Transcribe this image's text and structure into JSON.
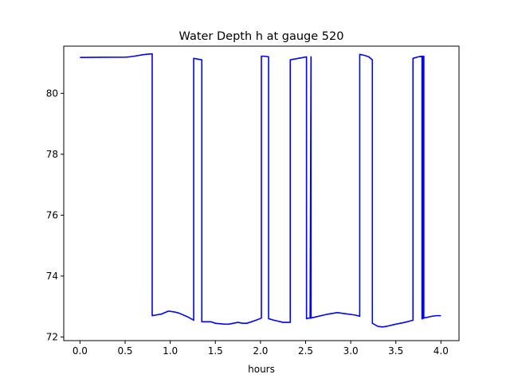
{
  "chart_data": {
    "type": "line",
    "title": "Water Depth h at gauge 520",
    "xlabel": "hours",
    "ylabel": "",
    "xlim": [
      -0.18,
      4.2
    ],
    "ylim": [
      71.88,
      81.55
    ],
    "xticks": [
      0.0,
      0.5,
      1.0,
      1.5,
      2.0,
      2.5,
      3.0,
      3.5,
      4.0
    ],
    "xtick_labels": [
      "0.0",
      "0.5",
      "1.0",
      "1.5",
      "2.0",
      "2.5",
      "3.0",
      "3.5",
      "4.0"
    ],
    "yticks": [
      72,
      74,
      76,
      78,
      80
    ],
    "ytick_labels": [
      "72",
      "74",
      "76",
      "78",
      "80"
    ],
    "grid": false,
    "series": [
      {
        "name": "",
        "color": "#0000ff",
        "x": [
          0.0,
          0.5,
          0.55,
          0.6,
          0.7,
          0.8,
          0.8,
          0.9,
          0.98,
          1.05,
          1.1,
          1.2,
          1.26,
          1.26,
          1.35,
          1.35,
          1.45,
          1.5,
          1.6,
          1.65,
          1.7,
          1.75,
          1.8,
          1.85,
          1.95,
          2.01,
          2.01,
          2.04,
          2.09,
          2.09,
          2.15,
          2.25,
          2.33,
          2.33,
          2.42,
          2.51,
          2.51,
          2.53,
          2.55,
          2.56,
          2.56,
          2.6,
          2.7,
          2.75,
          2.85,
          2.9,
          3.05,
          3.1,
          3.1,
          3.15,
          3.2,
          3.24,
          3.24,
          3.3,
          3.35,
          3.4,
          3.5,
          3.6,
          3.69,
          3.69,
          3.75,
          3.79,
          3.79,
          3.8,
          3.8,
          3.81,
          3.81,
          3.9,
          3.95,
          4.0
        ],
        "y": [
          81.18,
          81.19,
          81.2,
          81.22,
          81.27,
          81.3,
          72.7,
          72.75,
          72.85,
          72.82,
          72.78,
          72.65,
          72.55,
          81.15,
          81.1,
          72.5,
          72.5,
          72.45,
          72.42,
          72.42,
          72.45,
          72.48,
          72.45,
          72.45,
          72.55,
          72.62,
          81.22,
          81.22,
          81.2,
          72.6,
          72.55,
          72.48,
          72.48,
          81.1,
          81.15,
          81.2,
          72.6,
          72.62,
          72.62,
          81.2,
          72.62,
          72.65,
          72.72,
          72.75,
          72.8,
          72.78,
          72.72,
          72.68,
          81.28,
          81.25,
          81.2,
          81.1,
          72.45,
          72.35,
          72.33,
          72.35,
          72.42,
          72.48,
          72.55,
          81.15,
          81.2,
          81.22,
          72.6,
          72.6,
          81.22,
          81.22,
          72.62,
          72.68,
          72.7,
          72.7
        ]
      }
    ]
  }
}
